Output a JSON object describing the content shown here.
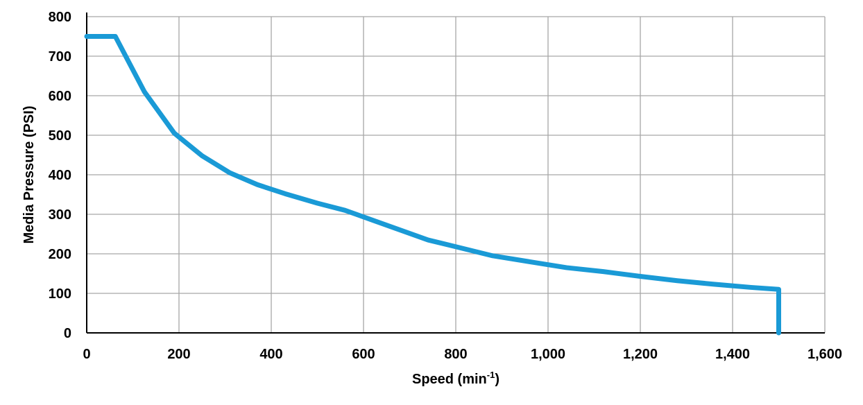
{
  "chart_data": {
    "type": "line",
    "title": "",
    "xlabel": "Speed (min",
    "xlabel_sup": "-1",
    "xlabel_suffix": ")",
    "ylabel": "Media Pressure (PSI)",
    "xlim": [
      0,
      1600
    ],
    "ylim": [
      0,
      800
    ],
    "xticks": [
      0,
      200,
      400,
      600,
      800,
      1000,
      1200,
      1400,
      1600
    ],
    "xtick_labels": [
      "0",
      "200",
      "400",
      "600",
      "800",
      "1,000",
      "1,200",
      "1,400",
      "1,600"
    ],
    "yticks": [
      0,
      100,
      200,
      300,
      400,
      500,
      600,
      700,
      800
    ],
    "ytick_labels": [
      "0",
      "100",
      "200",
      "300",
      "400",
      "500",
      "600",
      "700",
      "800"
    ],
    "grid": true,
    "legend": "none",
    "series": [
      {
        "color": "#1a9ad6",
        "x": [
          0,
          62,
          125,
          190,
          250,
          310,
          370,
          430,
          500,
          560,
          620,
          680,
          740,
          800,
          880,
          960,
          1040,
          1120,
          1200,
          1280,
          1360,
          1440,
          1500,
          1500
        ],
        "y": [
          750,
          750,
          610,
          505,
          448,
          405,
          375,
          352,
          328,
          310,
          285,
          260,
          235,
          218,
          195,
          180,
          165,
          155,
          143,
          132,
          123,
          115,
          110,
          0
        ]
      }
    ]
  }
}
